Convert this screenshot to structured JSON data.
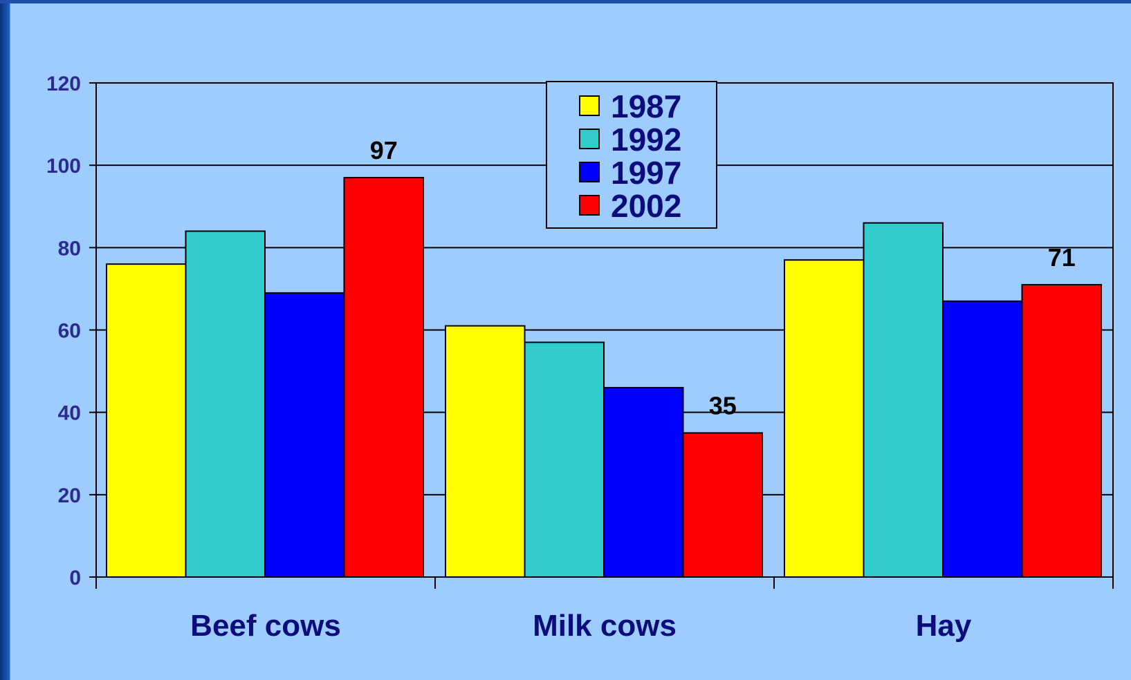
{
  "chart_data": {
    "type": "bar",
    "categories": [
      "Beef cows",
      "Milk cows",
      "Hay"
    ],
    "series": [
      {
        "name": "1987",
        "color": "#ffff00",
        "values": [
          76,
          61,
          77
        ]
      },
      {
        "name": "1992",
        "color": "#33cccc",
        "values": [
          84,
          57,
          86
        ]
      },
      {
        "name": "1997",
        "color": "#0000ff",
        "values": [
          69,
          46,
          67
        ]
      },
      {
        "name": "2002",
        "color": "#ff0000",
        "values": [
          97,
          35,
          71
        ]
      }
    ],
    "data_labels": [
      {
        "category": "Beef cows",
        "series": "2002",
        "text": "97"
      },
      {
        "category": "Milk cows",
        "series": "2002",
        "text": "35"
      },
      {
        "category": "Hay",
        "series": "2002",
        "text": "71"
      }
    ],
    "ylim": [
      0,
      120
    ],
    "yticks": [
      "0",
      "20",
      "40",
      "60",
      "80",
      "100",
      "120"
    ],
    "grid": true,
    "legend_position": "top-center",
    "title": "",
    "xlabel": "",
    "ylabel": ""
  }
}
